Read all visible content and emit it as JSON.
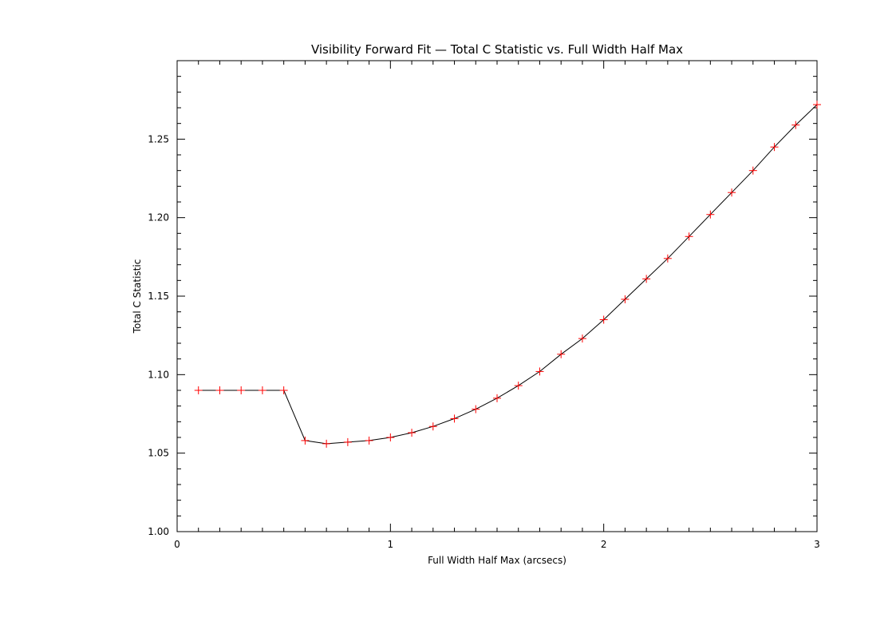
{
  "chart_data": {
    "type": "line",
    "title": "Visibility Forward Fit — Total C Statistic vs. Full Width Half Max",
    "xlabel": "Full Width Half Max (arcsecs)",
    "ylabel": "Total C Statistic",
    "xlim": [
      0,
      3
    ],
    "ylim": [
      1.0,
      1.3
    ],
    "x_ticks": [
      "0",
      "1",
      "2",
      "3"
    ],
    "y_ticks": [
      "1.00",
      "1.05",
      "1.10",
      "1.15",
      "1.20",
      "1.25"
    ],
    "grid": false,
    "line_color": "#000000",
    "marker_color": "#ff0000",
    "marker": "plus",
    "series": [
      {
        "x": [
          0.1,
          0.2,
          0.3,
          0.4,
          0.5,
          0.6,
          0.7,
          0.8,
          0.9,
          1.0,
          1.1,
          1.2,
          1.3,
          1.4,
          1.5,
          1.6,
          1.7,
          1.8,
          1.9,
          2.0,
          2.1,
          2.2,
          2.3,
          2.4,
          2.5,
          2.6,
          2.7,
          2.8,
          2.9,
          3.0
        ],
        "y": [
          1.09,
          1.09,
          1.09,
          1.09,
          1.09,
          1.058,
          1.056,
          1.057,
          1.058,
          1.06,
          1.063,
          1.067,
          1.072,
          1.078,
          1.085,
          1.093,
          1.102,
          1.113,
          1.123,
          1.135,
          1.148,
          1.161,
          1.174,
          1.188,
          1.202,
          1.216,
          1.23,
          1.245,
          1.259,
          1.272
        ]
      }
    ]
  }
}
